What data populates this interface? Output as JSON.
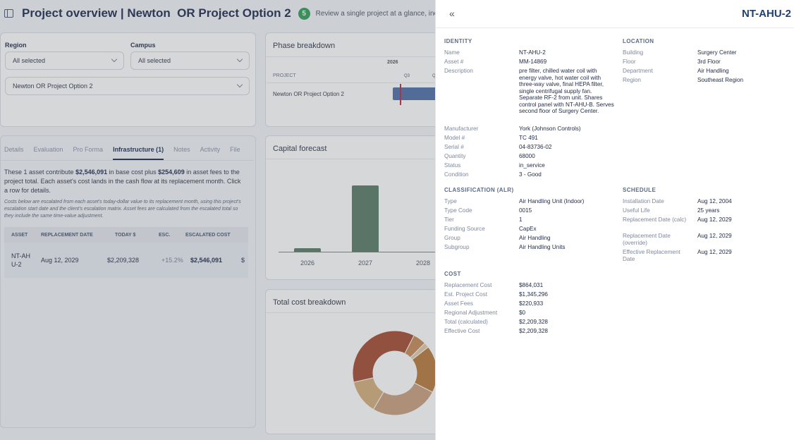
{
  "header": {
    "title": "Project overview | Newton  OR Project Option 2",
    "badge": "5",
    "subtitle": "Review a single project at a glance, including scope, sc"
  },
  "filters": {
    "region_label": "Region",
    "region_value": "All selected",
    "campus_label": "Campus",
    "campus_value": "All selected",
    "project_value": "Newton OR Project Option 2"
  },
  "phase": {
    "title": "Phase breakdown",
    "year": "2026",
    "q1": "Q3",
    "q2": "Q",
    "col_header": "PROJECT",
    "row_label": "Newton OR Project Option 2"
  },
  "tabs": [
    "Details",
    "Evaluation",
    "Pro Forma",
    "Infrastructure (1)",
    "Notes",
    "Activity",
    "File"
  ],
  "summary": {
    "p1": "These 1 asset contribute ",
    "base": "$2,546,091",
    "p2": " in base cost plus ",
    "fees": "$254,609",
    "p3": " in asset fees to the project total. Each asset's cost lands in the cash flow at its replacement month. Click a row for details.",
    "note": "Costs below are escalated from each asset's today-dollar value to its replacement month, using this project's escalation start date and the client's escalation matrix. Asset fees are calculated from the escalated total so they include the same time-value adjustment."
  },
  "table": {
    "headers": [
      "ASSET",
      "REPLACEMENT DATE",
      "TODAY $",
      "ESC.",
      "ESCALATED COST"
    ],
    "row": [
      "NT-AHU-2",
      "Aug 12, 2029",
      "$2,209,328",
      "+15.2%",
      "$2,546,091",
      "$"
    ]
  },
  "capital": {
    "title": "Capital forecast",
    "chart_data": {
      "type": "bar",
      "categories": [
        "2026",
        "2027",
        "2028"
      ],
      "values": [
        0.05,
        1.0,
        0
      ],
      "note": "values are relative heights; y axis not labeled",
      "color": "#587a66"
    }
  },
  "total": {
    "title": "Total cost breakdown",
    "chart_data": {
      "type": "pie",
      "donut": true,
      "slices": [
        {
          "value": 0.36,
          "color": "#a44a2f"
        },
        {
          "value": 0.05,
          "color": "#c68a56"
        },
        {
          "value": 0.02,
          "color": "#e3c9a5"
        },
        {
          "value": 0.18,
          "color": "#b67a3b"
        },
        {
          "value": 0.26,
          "color": "#c9a07e"
        },
        {
          "value": 0.13,
          "color": "#d4b07a"
        }
      ]
    }
  },
  "panel": {
    "collapse": "«",
    "title": "NT-AHU-2",
    "identity": {
      "title": "IDENTITY",
      "rows": [
        {
          "k": "Name",
          "v": "NT-AHU-2"
        },
        {
          "k": "Asset #",
          "v": "MM-14869"
        },
        {
          "k": "Description",
          "v": "pre filter, chilled water coil with energy valve, hot water coil with three-way valve, final HEPA filter, single centrifugal supply fan. Separate RF-2 from unit. Shares control panel with NT-AHU-B. Serves second floor of Surgery Center."
        },
        {
          "k": "Manufacturer",
          "v": "York (Johnson Controls)"
        },
        {
          "k": "Model #",
          "v": "TC 491"
        },
        {
          "k": "Serial #",
          "v": "04-83736-02"
        },
        {
          "k": "Quantity",
          "v": "68000"
        },
        {
          "k": "Status",
          "v": "in_service"
        },
        {
          "k": "Condition",
          "v": "3 - Good"
        }
      ]
    },
    "location": {
      "title": "LOCATION",
      "rows": [
        {
          "k": "Building",
          "v": "Surgery Center"
        },
        {
          "k": "Floor",
          "v": "3rd Floor"
        },
        {
          "k": "Department",
          "v": "Air Handling"
        },
        {
          "k": "Region",
          "v": "Southeast Region"
        }
      ]
    },
    "classification": {
      "title": "CLASSIFICATION (ALR)",
      "rows": [
        {
          "k": "Type",
          "v": "Air Handling Unit (Indoor)"
        },
        {
          "k": "Type Code",
          "v": "0015"
        },
        {
          "k": "Tier",
          "v": "1"
        },
        {
          "k": "Funding Source",
          "v": "CapEx"
        },
        {
          "k": "Group",
          "v": "Air Handling"
        },
        {
          "k": "Subgroup",
          "v": "Air Handling Units"
        }
      ]
    },
    "schedule": {
      "title": "SCHEDULE",
      "rows": [
        {
          "k": "Installation Date",
          "v": "Aug 12, 2004"
        },
        {
          "k": "Useful Life",
          "v": "25 years"
        },
        {
          "k": "Replacement Date (calc)",
          "v": "Aug 12, 2029"
        },
        {
          "k": "Replacement Date (override)",
          "v": "Aug 12, 2029"
        },
        {
          "k": "Effective Replacement Date",
          "v": "Aug 12, 2029"
        }
      ]
    },
    "cost": {
      "title": "COST",
      "rows": [
        {
          "k": "Replacement Cost",
          "v": "$864,031"
        },
        {
          "k": "Est. Project Cost",
          "v": "$1,345,296"
        },
        {
          "k": "Asset Fees",
          "v": "$220,933"
        },
        {
          "k": "Regional Adjustment",
          "v": "$0"
        },
        {
          "k": "Total (calculated)",
          "v": "$2,209,328"
        },
        {
          "k": "Effective Cost",
          "v": "$2,209,328"
        }
      ]
    }
  }
}
